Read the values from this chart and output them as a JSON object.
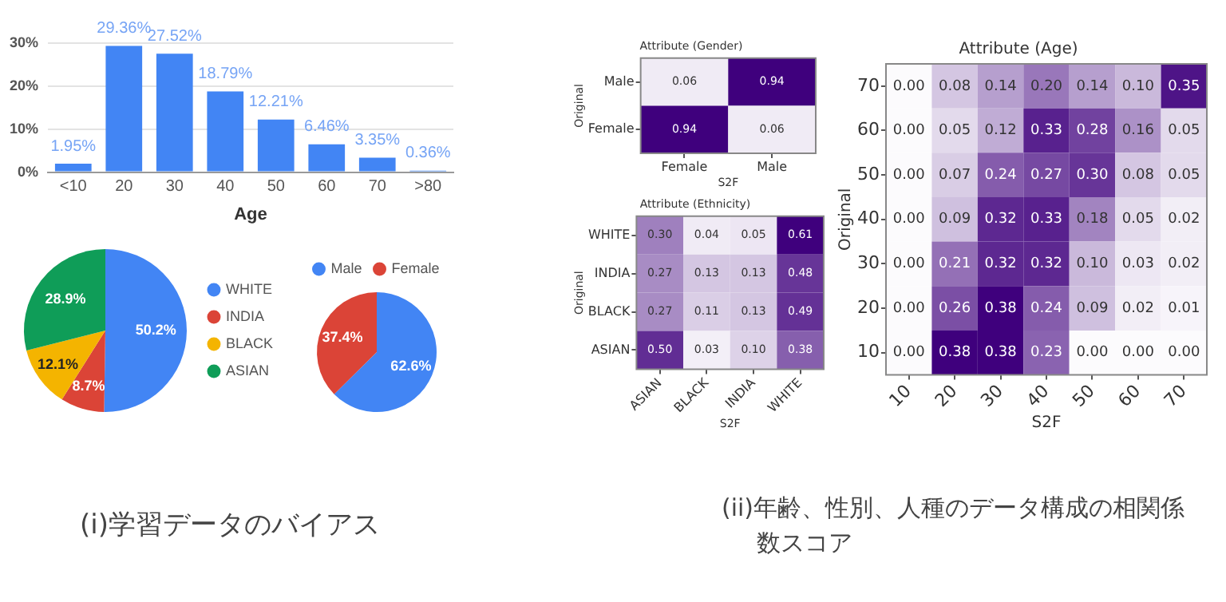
{
  "chart_data": [
    {
      "type": "bar",
      "xlabel": "Age",
      "categories": [
        "<10",
        "20",
        "30",
        "40",
        "50",
        "60",
        "70",
        ">80"
      ],
      "values": [
        1.95,
        29.36,
        27.52,
        18.79,
        12.21,
        6.46,
        3.35,
        0.36
      ],
      "value_labels": [
        "1.95%",
        "29.36%",
        "27.52%",
        "18.79%",
        "12.21%",
        "6.46%",
        "3.35%",
        "0.36%"
      ],
      "color": "#4285f4",
      "ylim": [
        0,
        30
      ],
      "yticks": [
        {
          "value": 0,
          "label": "0%"
        },
        {
          "value": 10,
          "label": "10%"
        },
        {
          "value": 20,
          "label": "20%"
        },
        {
          "value": 30,
          "label": "30%"
        }
      ],
      "grid": "y",
      "legend": false
    },
    {
      "type": "pie",
      "categories": [
        "WHITE",
        "INDIA",
        "BLACK",
        "ASIAN"
      ],
      "values": [
        50.2,
        8.7,
        12.1,
        28.9
      ],
      "value_labels": [
        "50.2%",
        "8.7%",
        "12.1%",
        "28.9%"
      ],
      "colors": [
        "#4285f4",
        "#db4437",
        "#f4b400",
        "#0f9d58"
      ],
      "legend": "right",
      "annotations": [
        "(i)学習データのバイアス"
      ]
    },
    {
      "type": "pie",
      "categories": [
        "Male",
        "Female"
      ],
      "values": [
        62.6,
        37.4
      ],
      "value_labels": [
        "62.6%",
        "37.4%"
      ],
      "colors": [
        "#4285f4",
        "#db4437"
      ],
      "legend": "top"
    },
    {
      "type": "heatmap",
      "title": "Attribute (Gender)",
      "xlabel": "S2F",
      "ylabel": "Original",
      "categories": [
        "Female",
        "Male"
      ],
      "y_categories": [
        "Male",
        "Female"
      ],
      "cells": [
        [
          0.06,
          0.94
        ],
        [
          0.94,
          0.06
        ]
      ],
      "cell_labels": [
        [
          "0.06",
          "0.94"
        ],
        [
          "0.94",
          "0.06"
        ]
      ],
      "data_labels": true
    },
    {
      "type": "heatmap",
      "title": "Attribute (Ethnicity)",
      "xlabel": "S2F",
      "ylabel": "Original",
      "categories": [
        "ASIAN",
        "BLACK",
        "INDIA",
        "WHITE"
      ],
      "y_categories": [
        "WHITE",
        "INDIA",
        "BLACK",
        "ASIAN"
      ],
      "cells": [
        [
          0.3,
          0.04,
          0.05,
          0.61
        ],
        [
          0.27,
          0.13,
          0.13,
          0.48
        ],
        [
          0.27,
          0.11,
          0.13,
          0.49
        ],
        [
          0.5,
          0.03,
          0.1,
          0.38
        ]
      ],
      "cell_labels": [
        [
          "0.30",
          "0.04",
          "0.05",
          "0.61"
        ],
        [
          "0.27",
          "0.13",
          "0.13",
          "0.48"
        ],
        [
          "0.27",
          "0.11",
          "0.13",
          "0.49"
        ],
        [
          "0.50",
          "0.03",
          "0.10",
          "0.38"
        ]
      ],
      "data_labels": true
    },
    {
      "type": "heatmap",
      "title": "Attribute (Age)",
      "xlabel": "S2F",
      "ylabel": "Original",
      "categories": [
        "10",
        "20",
        "30",
        "40",
        "50",
        "60",
        "70"
      ],
      "y_categories": [
        "70",
        "60",
        "50",
        "40",
        "30",
        "20",
        "10"
      ],
      "cells": [
        [
          0.0,
          0.08,
          0.14,
          0.2,
          0.14,
          0.1,
          0.35
        ],
        [
          0.0,
          0.05,
          0.12,
          0.33,
          0.28,
          0.16,
          0.05
        ],
        [
          0.0,
          0.07,
          0.24,
          0.27,
          0.3,
          0.08,
          0.05
        ],
        [
          0.0,
          0.09,
          0.32,
          0.33,
          0.18,
          0.05,
          0.02
        ],
        [
          0.0,
          0.21,
          0.32,
          0.32,
          0.1,
          0.03,
          0.02
        ],
        [
          0.0,
          0.26,
          0.38,
          0.24,
          0.09,
          0.02,
          0.01
        ],
        [
          0.0,
          0.38,
          0.38,
          0.23,
          0.0,
          0.0,
          0.0
        ]
      ],
      "cell_labels": [
        [
          "0.00",
          "0.08",
          "0.14",
          "0.20",
          "0.14",
          "0.10",
          "0.35"
        ],
        [
          "0.00",
          "0.05",
          "0.12",
          "0.33",
          "0.28",
          "0.16",
          "0.05"
        ],
        [
          "0.00",
          "0.07",
          "0.24",
          "0.27",
          "0.30",
          "0.08",
          "0.05"
        ],
        [
          "0.00",
          "0.09",
          "0.32",
          "0.33",
          "0.18",
          "0.05",
          "0.02"
        ],
        [
          "0.00",
          "0.21",
          "0.32",
          "0.32",
          "0.10",
          "0.03",
          "0.02"
        ],
        [
          "0.00",
          "0.26",
          "0.38",
          "0.24",
          "0.09",
          "0.02",
          "0.01"
        ],
        [
          "0.00",
          "0.38",
          "0.38",
          "0.23",
          "0.00",
          "0.00",
          "0.00"
        ]
      ],
      "data_labels": true,
      "annotations": [
        "(ii)年齢、性別、人種のデータ構成の相関係数スコア"
      ]
    }
  ]
}
